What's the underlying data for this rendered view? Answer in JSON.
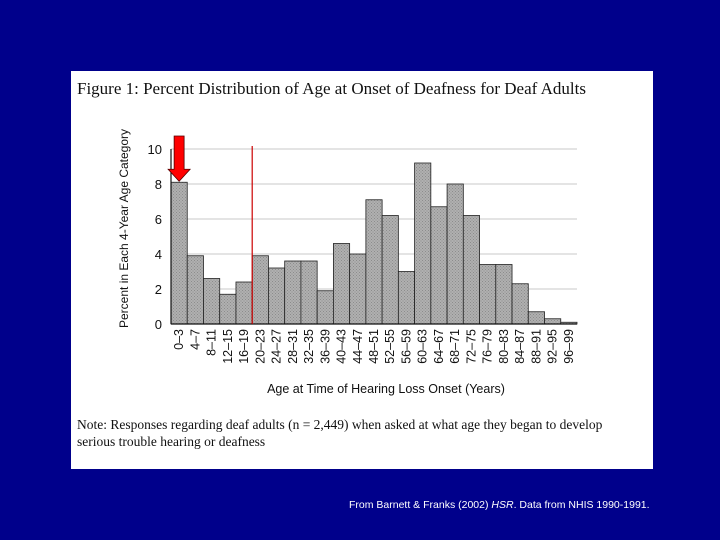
{
  "figure": {
    "title": "Figure 1:   Percent Distribution of Age at Onset of Deafness for Deaf Adults",
    "note": "Note: Responses regarding deaf adults (n = 2,449) when asked at what age they began to develop serious trouble hearing or deafness"
  },
  "credit": {
    "prefix": "From Barnett & Franks (2002) ",
    "journal": "HSR",
    "suffix": ".  Data from NHIS 1990-1991."
  },
  "colors": {
    "background": "#00008b",
    "bar_fill": "#a8a8a8",
    "arrow": "#ff0000",
    "reference_line": "#cc0000"
  },
  "chart_data": {
    "type": "bar",
    "xlabel": "Age at Time of Hearing Loss Onset (Years)",
    "ylabel": "Percent in Each 4-Year Age Category",
    "ylim": [
      0,
      10
    ],
    "yticks": [
      0,
      2,
      4,
      6,
      8,
      10
    ],
    "grid": true,
    "categories": [
      "0–3",
      "4–7",
      "8–11",
      "12–15",
      "16–19",
      "20–23",
      "24–27",
      "28–31",
      "32–35",
      "36–39",
      "40–43",
      "44–47",
      "48–51",
      "52–55",
      "56–59",
      "60–63",
      "64–67",
      "68–71",
      "72–75",
      "76–79",
      "80–83",
      "84–87",
      "88–91",
      "92–95",
      "96–99"
    ],
    "values": [
      8.1,
      3.9,
      2.6,
      1.7,
      2.4,
      3.9,
      3.2,
      3.6,
      3.6,
      1.9,
      4.6,
      4.0,
      7.1,
      6.2,
      3.0,
      9.2,
      6.7,
      8.0,
      6.2,
      3.4,
      3.4,
      2.3,
      0.7,
      0.3,
      0.1
    ],
    "annotations": [
      {
        "type": "arrow",
        "category": "0–3",
        "color": "red"
      },
      {
        "type": "vertical-line",
        "between": [
          "16–19",
          "20–23"
        ],
        "color": "red"
      }
    ]
  }
}
